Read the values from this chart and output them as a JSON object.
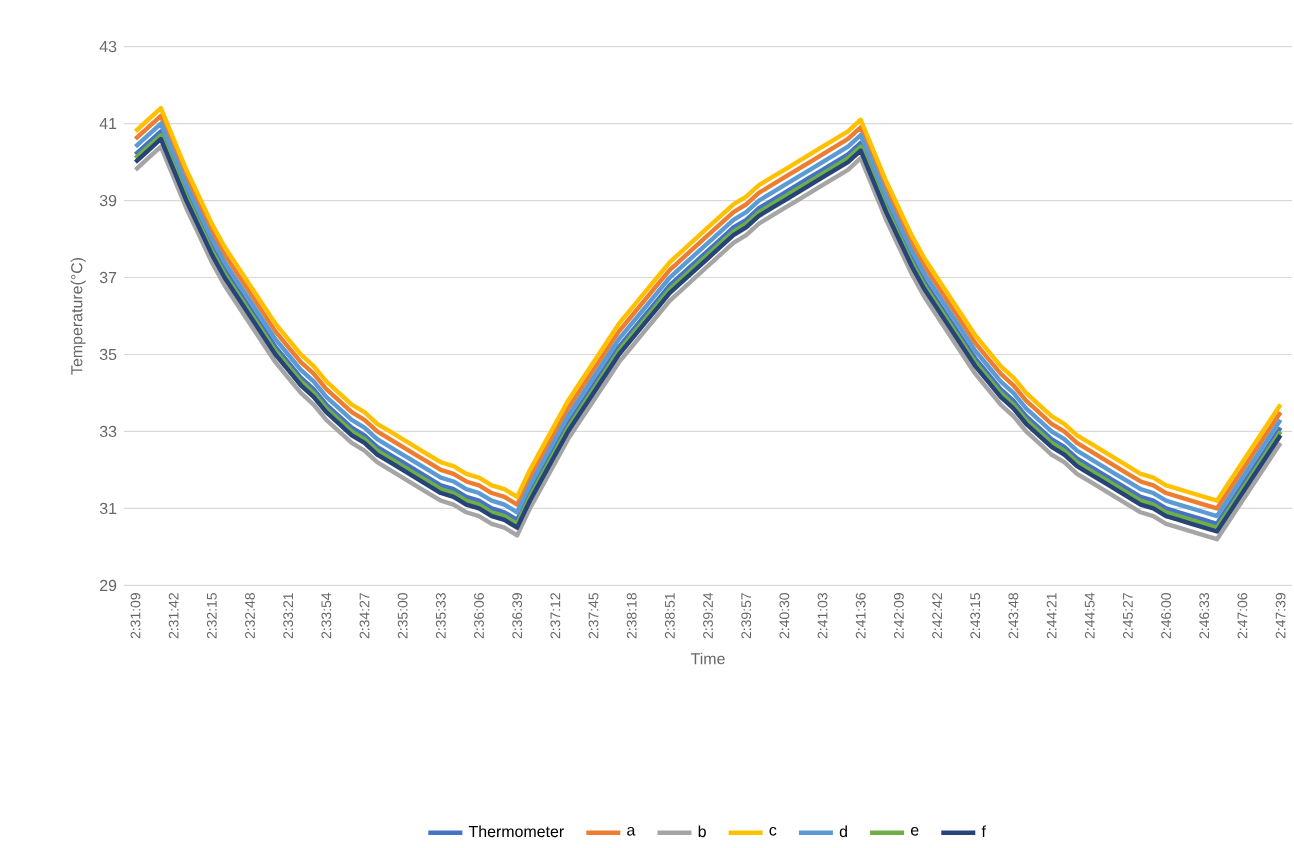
{
  "chart_data": {
    "type": "line",
    "xlabel": "Time",
    "ylabel": "Temperature(°C)",
    "categories": [
      "2:31:09",
      null,
      null,
      "2:31:42",
      null,
      null,
      "2:32:15",
      null,
      null,
      "2:32:48",
      null,
      null,
      "2:33:21",
      null,
      null,
      "2:33:54",
      null,
      null,
      "2:34:27",
      null,
      null,
      "2:35:00",
      null,
      null,
      "2:35:33",
      null,
      null,
      "2:36:06",
      null,
      null,
      "2:36:39",
      null,
      null,
      "2:37:12",
      null,
      null,
      "2:37:45",
      null,
      null,
      "2:38:18",
      null,
      null,
      "2:38:51",
      null,
      null,
      "2:39:24",
      null,
      null,
      "2:39:57",
      null,
      null,
      "2:40:30",
      null,
      null,
      "2:41:03",
      null,
      null,
      "2:41:36",
      null,
      null,
      "2:42:09",
      null,
      null,
      "2:42:42",
      null,
      null,
      "2:43:15",
      null,
      null,
      "2:43:48",
      null,
      null,
      "2:44:21",
      null,
      null,
      "2:44:54",
      null,
      null,
      "2:45:27",
      null,
      null,
      "2:46:00",
      null,
      null,
      "2:46:33",
      null,
      null,
      "2:47:06",
      null,
      null,
      "2:47:39"
    ],
    "ylim": [
      29,
      43
    ],
    "yticks": [
      29,
      31,
      33,
      35,
      37,
      39,
      41,
      43
    ],
    "grid": "y",
    "legend": "bottom",
    "series": [
      {
        "name": "Thermometer",
        "color": "#4472c4",
        "values": [
          40.2,
          40.5,
          40.8,
          40.0,
          39.2,
          38.5,
          37.8,
          37.2,
          36.7,
          36.2,
          35.7,
          35.2,
          34.8,
          34.4,
          34.1,
          33.7,
          33.4,
          33.1,
          32.9,
          32.6,
          32.4,
          32.2,
          32.0,
          31.8,
          31.6,
          31.5,
          31.3,
          31.2,
          31.0,
          30.9,
          30.7,
          31.4,
          32.0,
          32.6,
          33.2,
          33.7,
          34.2,
          34.7,
          35.2,
          35.6,
          36.0,
          36.4,
          36.8,
          37.1,
          37.4,
          37.7,
          38.0,
          38.3,
          38.5,
          38.8,
          39.0,
          39.2,
          39.4,
          39.6,
          39.8,
          40.0,
          40.2,
          40.5,
          39.7,
          38.9,
          38.2,
          37.5,
          36.9,
          36.4,
          35.9,
          35.4,
          34.9,
          34.5,
          34.1,
          33.8,
          33.4,
          33.1,
          32.8,
          32.6,
          32.3,
          32.1,
          31.9,
          31.7,
          31.5,
          31.3,
          31.2,
          31.0,
          30.9,
          30.8,
          30.7,
          30.6,
          31.1,
          31.6,
          32.1,
          32.6,
          33.1
        ]
      },
      {
        "name": "a",
        "color": "#ed7d31",
        "values": [
          40.6,
          40.9,
          41.2,
          40.4,
          39.6,
          38.9,
          38.2,
          37.6,
          37.1,
          36.6,
          36.1,
          35.6,
          35.2,
          34.8,
          34.5,
          34.1,
          33.8,
          33.5,
          33.3,
          33.0,
          32.8,
          32.6,
          32.4,
          32.2,
          32.0,
          31.9,
          31.7,
          31.6,
          31.4,
          31.3,
          31.1,
          31.8,
          32.4,
          33.0,
          33.6,
          34.1,
          34.6,
          35.1,
          35.6,
          36.0,
          36.4,
          36.8,
          37.2,
          37.5,
          37.8,
          38.1,
          38.4,
          38.7,
          38.9,
          39.2,
          39.4,
          39.6,
          39.8,
          40.0,
          40.2,
          40.4,
          40.6,
          40.9,
          40.1,
          39.3,
          38.6,
          37.9,
          37.3,
          36.8,
          36.3,
          35.8,
          35.3,
          34.9,
          34.5,
          34.2,
          33.8,
          33.5,
          33.2,
          33.0,
          32.7,
          32.5,
          32.3,
          32.1,
          31.9,
          31.7,
          31.6,
          31.4,
          31.3,
          31.2,
          31.1,
          31.0,
          31.5,
          32.0,
          32.5,
          33.0,
          33.5
        ]
      },
      {
        "name": "b",
        "color": "#a5a5a5",
        "values": [
          39.8,
          40.1,
          40.4,
          39.6,
          38.8,
          38.1,
          37.4,
          36.8,
          36.3,
          35.8,
          35.3,
          34.8,
          34.4,
          34.0,
          33.7,
          33.3,
          33.0,
          32.7,
          32.5,
          32.2,
          32.0,
          31.8,
          31.6,
          31.4,
          31.2,
          31.1,
          30.9,
          30.8,
          30.6,
          30.5,
          30.3,
          31.0,
          31.6,
          32.2,
          32.8,
          33.3,
          33.8,
          34.3,
          34.8,
          35.2,
          35.6,
          36.0,
          36.4,
          36.7,
          37.0,
          37.3,
          37.6,
          37.9,
          38.1,
          38.4,
          38.6,
          38.8,
          39.0,
          39.2,
          39.4,
          39.6,
          39.8,
          40.1,
          39.3,
          38.5,
          37.8,
          37.1,
          36.5,
          36.0,
          35.5,
          35.0,
          34.5,
          34.1,
          33.7,
          33.4,
          33.0,
          32.7,
          32.4,
          32.2,
          31.9,
          31.7,
          31.5,
          31.3,
          31.1,
          30.9,
          30.8,
          30.6,
          30.5,
          30.4,
          30.3,
          30.2,
          30.7,
          31.2,
          31.7,
          32.2,
          32.7
        ]
      },
      {
        "name": "c",
        "color": "#ffc000",
        "values": [
          40.8,
          41.1,
          41.4,
          40.6,
          39.8,
          39.1,
          38.4,
          37.8,
          37.3,
          36.8,
          36.3,
          35.8,
          35.4,
          35.0,
          34.7,
          34.3,
          34.0,
          33.7,
          33.5,
          33.2,
          33.0,
          32.8,
          32.6,
          32.4,
          32.2,
          32.1,
          31.9,
          31.8,
          31.6,
          31.5,
          31.3,
          32.0,
          32.6,
          33.2,
          33.8,
          34.3,
          34.8,
          35.3,
          35.8,
          36.2,
          36.6,
          37.0,
          37.4,
          37.7,
          38.0,
          38.3,
          38.6,
          38.9,
          39.1,
          39.4,
          39.6,
          39.8,
          40.0,
          40.2,
          40.4,
          40.6,
          40.8,
          41.1,
          40.3,
          39.5,
          38.8,
          38.1,
          37.5,
          37.0,
          36.5,
          36.0,
          35.5,
          35.1,
          34.7,
          34.4,
          34.0,
          33.7,
          33.4,
          33.2,
          32.9,
          32.7,
          32.5,
          32.3,
          32.1,
          31.9,
          31.8,
          31.6,
          31.5,
          31.4,
          31.3,
          31.2,
          31.7,
          32.2,
          32.7,
          33.2,
          33.7
        ]
      },
      {
        "name": "d",
        "color": "#5b9bd5",
        "values": [
          40.4,
          40.7,
          41.0,
          40.2,
          39.4,
          38.7,
          38.0,
          37.4,
          36.9,
          36.4,
          35.9,
          35.4,
          35.0,
          34.6,
          34.3,
          33.9,
          33.6,
          33.3,
          33.1,
          32.8,
          32.6,
          32.4,
          32.2,
          32.0,
          31.8,
          31.7,
          31.5,
          31.4,
          31.2,
          31.1,
          30.9,
          31.6,
          32.2,
          32.8,
          33.4,
          33.9,
          34.4,
          34.9,
          35.4,
          35.8,
          36.2,
          36.6,
          37.0,
          37.3,
          37.6,
          37.9,
          38.2,
          38.5,
          38.7,
          39.0,
          39.2,
          39.4,
          39.6,
          39.8,
          40.0,
          40.2,
          40.4,
          40.7,
          39.9,
          39.1,
          38.4,
          37.7,
          37.1,
          36.6,
          36.1,
          35.6,
          35.1,
          34.7,
          34.3,
          34.0,
          33.6,
          33.3,
          33.0,
          32.8,
          32.5,
          32.3,
          32.1,
          31.9,
          31.7,
          31.5,
          31.4,
          31.2,
          31.1,
          31.0,
          30.9,
          30.8,
          31.3,
          31.8,
          32.3,
          32.8,
          33.3
        ]
      },
      {
        "name": "e",
        "color": "#70ad47",
        "values": [
          40.1,
          40.4,
          40.7,
          39.9,
          39.1,
          38.4,
          37.7,
          37.1,
          36.6,
          36.1,
          35.6,
          35.1,
          34.7,
          34.3,
          34.0,
          33.6,
          33.3,
          33.0,
          32.8,
          32.5,
          32.3,
          32.1,
          31.9,
          31.7,
          31.5,
          31.4,
          31.2,
          31.1,
          30.9,
          30.8,
          30.6,
          31.3,
          31.9,
          32.5,
          33.1,
          33.6,
          34.1,
          34.6,
          35.1,
          35.5,
          35.9,
          36.3,
          36.7,
          37.0,
          37.3,
          37.6,
          37.9,
          38.2,
          38.4,
          38.7,
          38.9,
          39.1,
          39.3,
          39.5,
          39.7,
          39.9,
          40.1,
          40.4,
          39.6,
          38.8,
          38.1,
          37.4,
          36.8,
          36.3,
          35.8,
          35.3,
          34.8,
          34.4,
          34.0,
          33.7,
          33.3,
          33.0,
          32.7,
          32.5,
          32.2,
          32.0,
          31.8,
          31.6,
          31.4,
          31.2,
          31.1,
          30.9,
          30.8,
          30.7,
          30.6,
          30.5,
          31.0,
          31.5,
          32.0,
          32.5,
          33.0
        ]
      },
      {
        "name": "f",
        "color": "#264478",
        "values": [
          40.0,
          40.3,
          40.6,
          39.8,
          39.0,
          38.3,
          37.6,
          37.0,
          36.5,
          36.0,
          35.5,
          35.0,
          34.6,
          34.2,
          33.9,
          33.5,
          33.2,
          32.9,
          32.7,
          32.4,
          32.2,
          32.0,
          31.8,
          31.6,
          31.4,
          31.3,
          31.1,
          31.0,
          30.8,
          30.7,
          30.5,
          31.2,
          31.8,
          32.4,
          33.0,
          33.5,
          34.0,
          34.5,
          35.0,
          35.4,
          35.8,
          36.2,
          36.6,
          36.9,
          37.2,
          37.5,
          37.8,
          38.1,
          38.3,
          38.6,
          38.8,
          39.0,
          39.2,
          39.4,
          39.6,
          39.8,
          40.0,
          40.3,
          39.5,
          38.7,
          38.0,
          37.3,
          36.7,
          36.2,
          35.7,
          35.2,
          34.7,
          34.3,
          33.9,
          33.6,
          33.2,
          32.9,
          32.6,
          32.4,
          32.1,
          31.9,
          31.7,
          31.5,
          31.3,
          31.1,
          31.0,
          30.8,
          30.7,
          30.6,
          30.5,
          30.4,
          30.9,
          31.4,
          31.9,
          32.4,
          32.9
        ]
      }
    ]
  }
}
